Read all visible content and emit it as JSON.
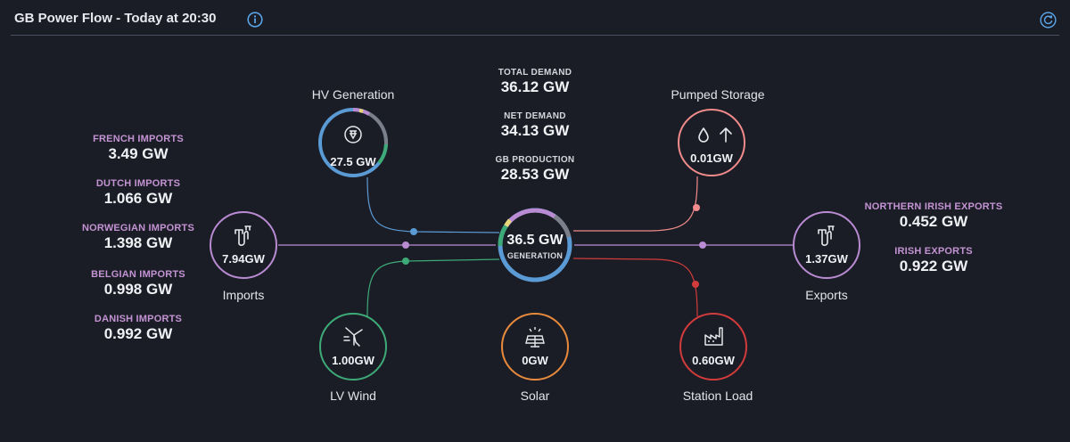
{
  "header": {
    "title": "GB Power Flow - Today at 20:30",
    "info_icon": "info-icon",
    "refresh_icon": "refresh-icon"
  },
  "summary": [
    {
      "label": "TOTAL DEMAND",
      "value": "36.12 GW"
    },
    {
      "label": "NET DEMAND",
      "value": "34.13 GW"
    },
    {
      "label": "GB PRODUCTION",
      "value": "28.53 GW"
    }
  ],
  "imports_breakdown": [
    {
      "label": "FRENCH IMPORTS",
      "value": "3.49 GW"
    },
    {
      "label": "DUTCH IMPORTS",
      "value": "1.066 GW"
    },
    {
      "label": "NORWEGIAN IMPORTS",
      "value": "1.398 GW"
    },
    {
      "label": "BELGIAN IMPORTS",
      "value": "0.998 GW"
    },
    {
      "label": "DANISH IMPORTS",
      "value": "0.992 GW"
    }
  ],
  "exports_breakdown": [
    {
      "label": "NORTHERN IRISH EXPORTS",
      "value": "0.452 GW"
    },
    {
      "label": "IRISH EXPORTS",
      "value": "0.922 GW"
    }
  ],
  "center": {
    "value": "36.5 GW",
    "label": "GENERATION"
  },
  "nodes": {
    "hv_generation": {
      "name": "HV Generation",
      "value": "27.5 GW",
      "icon": "power-plug-icon"
    },
    "pumped_storage": {
      "name": "Pumped Storage",
      "value": "0.01GW",
      "icon": "water-drop-up-icon"
    },
    "imports": {
      "name": "Imports",
      "value": "7.94GW",
      "icon": "transmission-icon"
    },
    "exports": {
      "name": "Exports",
      "value": "1.37GW",
      "icon": "transmission-icon"
    },
    "lv_wind": {
      "name": "LV Wind",
      "value": "1.00GW",
      "icon": "wind-turbine-icon"
    },
    "solar": {
      "name": "Solar",
      "value": "0GW",
      "icon": "solar-panel-icon"
    },
    "station_load": {
      "name": "Station Load",
      "value": "0.60GW",
      "icon": "factory-icon"
    }
  },
  "colors": {
    "background": "#1b1d26",
    "hv": "#5b9bd5",
    "pumped": "#f28b8b",
    "imports": "#b98bd2",
    "wind": "#3daa78",
    "solar": "#e88a3c",
    "station": "#d23b3b",
    "accent_label": "#c393d3"
  }
}
